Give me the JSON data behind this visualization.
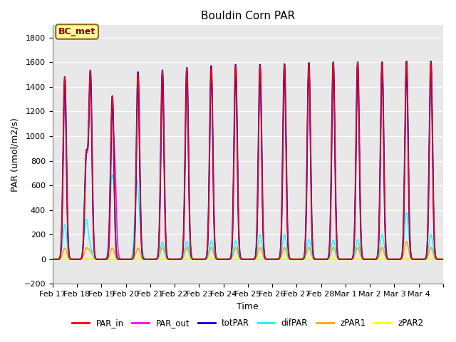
{
  "title": "Bouldin Corn PAR",
  "ylabel": "PAR (umol/m2/s)",
  "xlabel": "Time",
  "ylim": [
    -200,
    1900
  ],
  "yticks": [
    -200,
    0,
    200,
    400,
    600,
    800,
    1000,
    1200,
    1400,
    1600,
    1800
  ],
  "bg_color": "#e8e8e8",
  "annotation_text": "BC_met",
  "annotation_bg": "#ffff99",
  "annotation_border": "#8B6914",
  "n_days": 16,
  "colors": {
    "PAR_in": "#ff0000",
    "PAR_out": "#ff00ff",
    "totPAR": "#0000cc",
    "difPAR": "#00ffff",
    "zPAR1": "#ffa500",
    "zPAR2": "#ffff00"
  },
  "xtick_labels": [
    "Feb 17",
    "Feb 18",
    "Feb 19",
    "Feb 20",
    "Feb 21",
    "Feb 22",
    "Feb 23",
    "Feb 24",
    "Feb 25",
    "Feb 26",
    "Feb 27",
    "Feb 28",
    "Mar 1",
    "Mar 2",
    "Mar 3",
    "Mar 4"
  ],
  "title_fontsize": 11,
  "axis_label_fontsize": 9,
  "tick_fontsize": 8
}
